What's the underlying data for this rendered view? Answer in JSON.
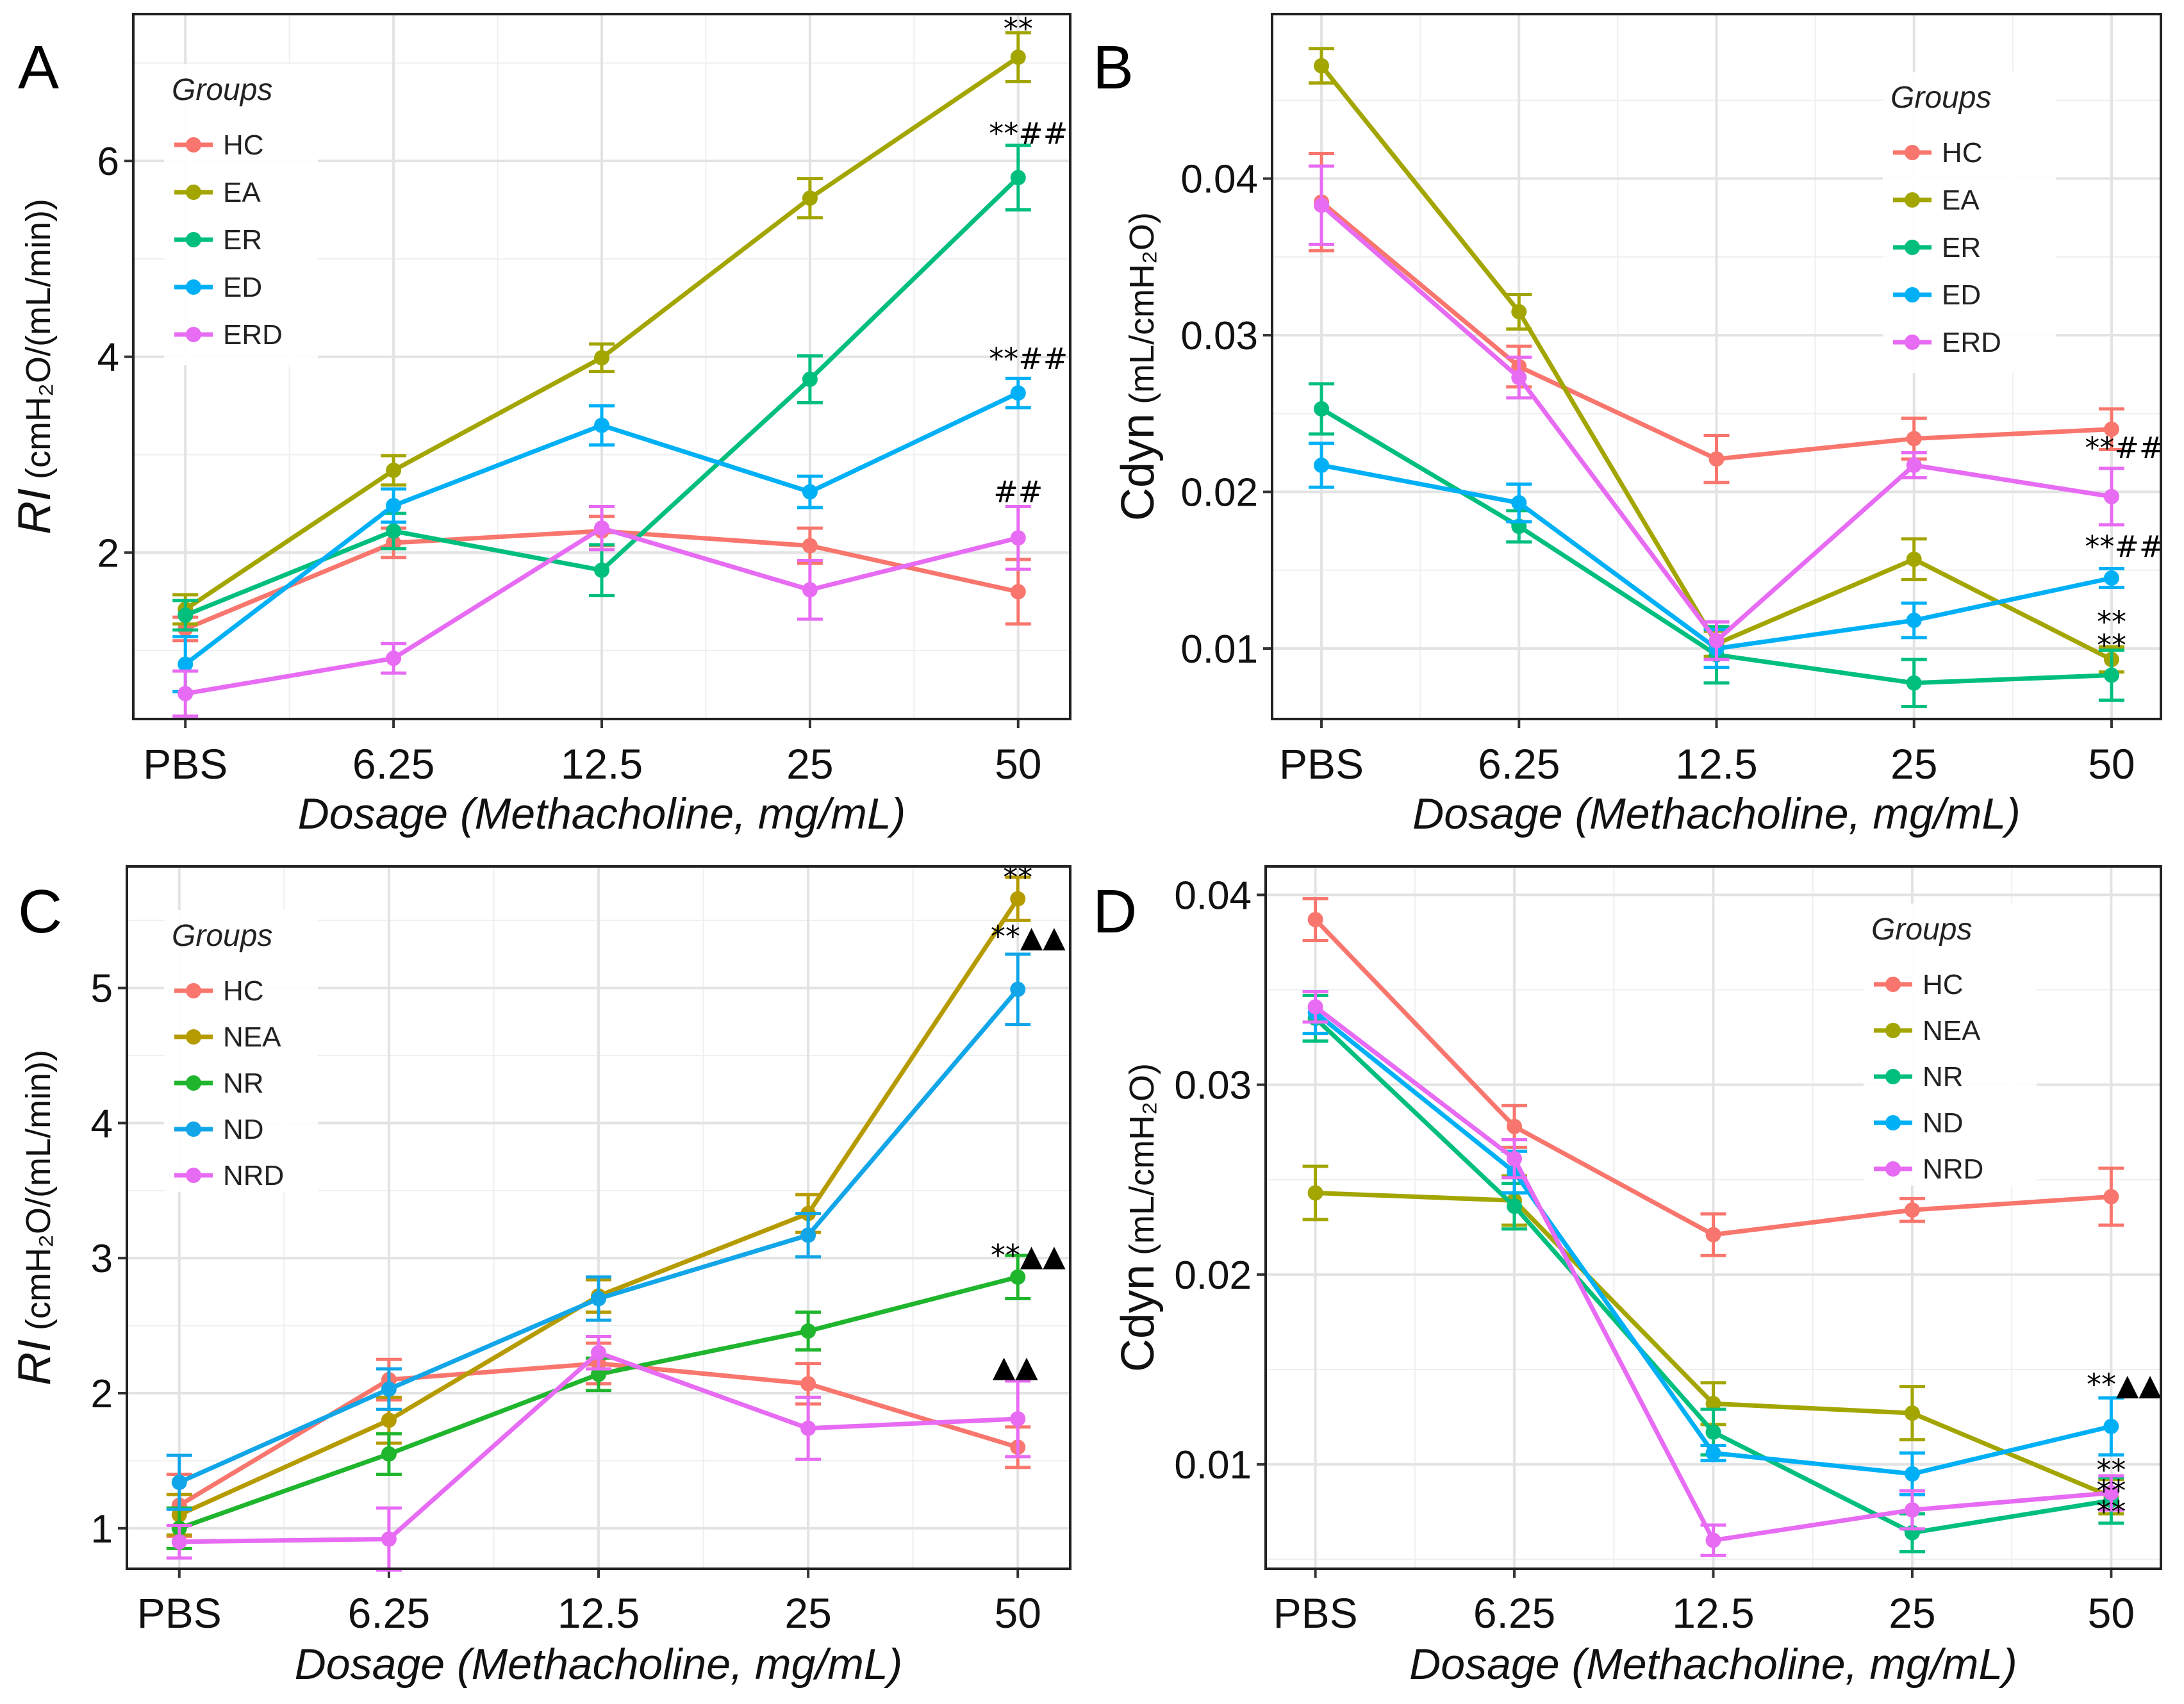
{
  "figure": {
    "colors": {
      "HC": "#F8766D",
      "EA": "#A3A500",
      "ER": "#00BF7D",
      "ED": "#00B0F6",
      "ERD": "#E76BF3",
      "NEA": "#B69B00",
      "NR": "#1FB52D",
      "ND": "#12A6E8",
      "NRD": "#E76BF3",
      "NEA_D": "#A3A500",
      "NR_D": "#00BF7D"
    }
  },
  "chart_data": [
    {
      "id": "A",
      "label": "A",
      "type": "line",
      "categories": [
        "PBS",
        "6.25",
        "12.5",
        "25",
        "50"
      ],
      "xlabel": "Dosage (Methacholine, mg/mL)",
      "ylabel_main": "RI",
      "ylabel_unit": "(cmH₂O/(mL/min))",
      "ylabel_italic": true,
      "ylim": [
        0.3,
        7.5
      ],
      "yticks": [
        2,
        4,
        6
      ],
      "ytick_labels": [
        "2",
        "4",
        "6"
      ],
      "legend_title": "Groups",
      "legend_pos": "top-left",
      "series": [
        {
          "name": "HC",
          "color": "#F8766D",
          "values": [
            1.22,
            2.1,
            2.22,
            2.07,
            1.6
          ],
          "err": [
            0.12,
            0.15,
            0.15,
            0.18,
            0.33
          ]
        },
        {
          "name": "EA",
          "color": "#A3A500",
          "values": [
            1.42,
            2.84,
            3.99,
            5.62,
            7.06
          ],
          "err": [
            0.15,
            0.15,
            0.14,
            0.2,
            0.25
          ]
        },
        {
          "name": "ER",
          "color": "#00BF7D",
          "values": [
            1.36,
            2.22,
            1.82,
            3.77,
            5.83
          ],
          "err": [
            0.15,
            0.18,
            0.26,
            0.24,
            0.33
          ]
        },
        {
          "name": "ED",
          "color": "#00B0F6",
          "values": [
            0.86,
            2.48,
            3.3,
            2.62,
            3.63
          ],
          "err": [
            0.28,
            0.17,
            0.2,
            0.16,
            0.15
          ]
        },
        {
          "name": "ERD",
          "color": "#E76BF3",
          "values": [
            0.56,
            0.92,
            2.25,
            1.62,
            2.15
          ],
          "err": [
            0.23,
            0.15,
            0.22,
            0.3,
            0.32
          ]
        }
      ],
      "annotations": [
        {
          "text": "**",
          "cat": 4,
          "y": 7.35,
          "dx": 0
        },
        {
          "text": "**##",
          "cat": 4,
          "y": 6.28,
          "dx": -4
        },
        {
          "text": "**##",
          "cat": 4,
          "y": 3.98,
          "dx": -4
        },
        {
          "text": "##",
          "cat": 4,
          "y": 2.62,
          "dx": 0
        }
      ]
    },
    {
      "id": "B",
      "label": "B",
      "type": "line",
      "categories": [
        "PBS",
        "6.25",
        "12.5",
        "25",
        "50"
      ],
      "xlabel": "Dosage (Methacholine, mg/mL)",
      "ylabel_main": "Cdyn",
      "ylabel_unit": "(mL/cmH₂O)",
      "ylabel_italic": false,
      "ylim": [
        0.0055,
        0.0505
      ],
      "yticks": [
        0.01,
        0.02,
        0.03,
        0.04
      ],
      "ytick_labels": [
        "0.01",
        "0.02",
        "0.03",
        "0.04"
      ],
      "legend_title": "Groups",
      "legend_pos": "top-right",
      "series": [
        {
          "name": "HC",
          "color": "#F8766D",
          "values": [
            0.0385,
            0.028,
            0.0221,
            0.0234,
            0.024
          ],
          "err": [
            0.0031,
            0.0013,
            0.0015,
            0.0013,
            0.0013
          ]
        },
        {
          "name": "EA",
          "color": "#A3A500",
          "values": [
            0.0472,
            0.0315,
            0.0103,
            0.0157,
            0.0093
          ],
          "err": [
            0.0011,
            0.0011,
            0.0008,
            0.0013,
            0.0008
          ]
        },
        {
          "name": "ER",
          "color": "#00BF7D",
          "values": [
            0.0253,
            0.0178,
            0.0096,
            0.0078,
            0.0083
          ],
          "err": [
            0.0016,
            0.001,
            0.0018,
            0.0015,
            0.0016
          ]
        },
        {
          "name": "ED",
          "color": "#00B0F6",
          "values": [
            0.0217,
            0.0193,
            0.01,
            0.0118,
            0.0145
          ],
          "err": [
            0.0014,
            0.0012,
            0.0012,
            0.0011,
            0.0006
          ]
        },
        {
          "name": "ERD",
          "color": "#E76BF3",
          "values": [
            0.0383,
            0.0273,
            0.0105,
            0.0217,
            0.0197
          ],
          "err": [
            0.0025,
            0.0013,
            0.0012,
            0.0008,
            0.0018
          ]
        }
      ],
      "annotations": [
        {
          "text": "**##",
          "cat": 4,
          "y": 0.0228,
          "dx": 0
        },
        {
          "text": "**##",
          "cat": 4,
          "y": 0.0165,
          "dx": 0
        },
        {
          "text": "**",
          "cat": 4,
          "y": 0.0117,
          "dx": 0
        },
        {
          "text": "**",
          "cat": 4,
          "y": 0.0102,
          "dx": 0
        }
      ]
    },
    {
      "id": "C",
      "label": "C",
      "type": "line",
      "categories": [
        "PBS",
        "6.25",
        "12.5",
        "25",
        "50"
      ],
      "xlabel": "Dosage (Methacholine, mg/mL)",
      "ylabel_main": "RI",
      "ylabel_unit": "(cmH₂O/(mL/min))",
      "ylabel_italic": true,
      "ylim": [
        0.7,
        5.9
      ],
      "yticks": [
        1,
        2,
        3,
        4,
        5
      ],
      "ytick_labels": [
        "1",
        "2",
        "3",
        "4",
        "5"
      ],
      "legend_title": "Groups",
      "legend_pos": "top-left",
      "series": [
        {
          "name": "HC",
          "color": "#F8766D",
          "values": [
            1.17,
            2.1,
            2.22,
            2.07,
            1.6
          ],
          "err": [
            0.23,
            0.15,
            0.15,
            0.15,
            0.15
          ]
        },
        {
          "name": "NEA",
          "color": "#B69B00",
          "values": [
            1.1,
            1.8,
            2.72,
            3.33,
            5.66
          ],
          "err": [
            0.15,
            0.17,
            0.12,
            0.14,
            0.16
          ]
        },
        {
          "name": "NR",
          "color": "#1FB52D",
          "values": [
            1.0,
            1.55,
            2.14,
            2.46,
            2.86
          ],
          "err": [
            0.15,
            0.15,
            0.12,
            0.14,
            0.16
          ]
        },
        {
          "name": "ND",
          "color": "#12A6E8",
          "values": [
            1.34,
            2.03,
            2.7,
            3.17,
            4.99
          ],
          "err": [
            0.2,
            0.15,
            0.16,
            0.16,
            0.26
          ]
        },
        {
          "name": "NRD",
          "color": "#E76BF3",
          "values": [
            0.9,
            0.92,
            2.3,
            1.74,
            1.81
          ],
          "err": [
            0.12,
            0.23,
            0.12,
            0.23,
            0.28
          ]
        }
      ],
      "annotations": [
        {
          "text": "**",
          "cat": 4,
          "y": 5.82,
          "dx": 0
        },
        {
          "text": "**▲▲",
          "cat": 4,
          "y": 5.38,
          "dx": -4
        },
        {
          "text": "**▲▲",
          "cat": 4,
          "y": 3.02,
          "dx": -4
        },
        {
          "text": "▲▲",
          "cat": 4,
          "y": 2.2,
          "dx": -4
        }
      ]
    },
    {
      "id": "D",
      "label": "D",
      "type": "line",
      "categories": [
        "PBS",
        "6.25",
        "12.5",
        "25",
        "50"
      ],
      "xlabel": "Dosage (Methacholine, mg/mL)",
      "ylabel_main": "Cdyn",
      "ylabel_unit": "(mL/cmH₂O)",
      "ylabel_italic": false,
      "ylim": [
        0.0045,
        0.0415
      ],
      "yticks": [
        0.01,
        0.02,
        0.03,
        0.04
      ],
      "ytick_labels": [
        "0.01",
        "0.02",
        "0.03",
        "0.04"
      ],
      "legend_title": "Groups",
      "legend_pos": "top-right",
      "series": [
        {
          "name": "HC",
          "color": "#F8766D",
          "values": [
            0.0387,
            0.0278,
            0.0221,
            0.0234,
            0.0241
          ],
          "err": [
            0.0011,
            0.0011,
            0.0011,
            0.0006,
            0.0015
          ]
        },
        {
          "name": "NEA",
          "color": "#A3A500",
          "values": [
            0.0243,
            0.0239,
            0.0132,
            0.0127,
            0.0083
          ],
          "err": [
            0.0014,
            0.0013,
            0.0011,
            0.0014,
            0.0009
          ]
        },
        {
          "name": "NR",
          "color": "#00BF7D",
          "values": [
            0.0335,
            0.0236,
            0.0117,
            0.0064,
            0.0081
          ],
          "err": [
            0.0012,
            0.0012,
            0.0012,
            0.001,
            0.0012
          ]
        },
        {
          "name": "ND",
          "color": "#00B0F6",
          "values": [
            0.0338,
            0.0254,
            0.0106,
            0.0095,
            0.012
          ],
          "err": [
            0.0011,
            0.0011,
            0.0004,
            0.0011,
            0.0015
          ]
        },
        {
          "name": "NRD",
          "color": "#E76BF3",
          "values": [
            0.0341,
            0.0261,
            0.006,
            0.0076,
            0.0085
          ],
          "err": [
            0.0008,
            0.001,
            0.0008,
            0.001,
            0.0009
          ]
        }
      ],
      "annotations": [
        {
          "text": "**▲▲",
          "cat": 4,
          "y": 0.0142,
          "dx": 0
        },
        {
          "text": "**",
          "cat": 4,
          "y": 0.0097,
          "dx": 0
        },
        {
          "text": "**",
          "cat": 4,
          "y": 0.0086,
          "dx": 0
        },
        {
          "text": "**",
          "cat": 4,
          "y": 0.0075,
          "dx": 0
        }
      ]
    }
  ]
}
